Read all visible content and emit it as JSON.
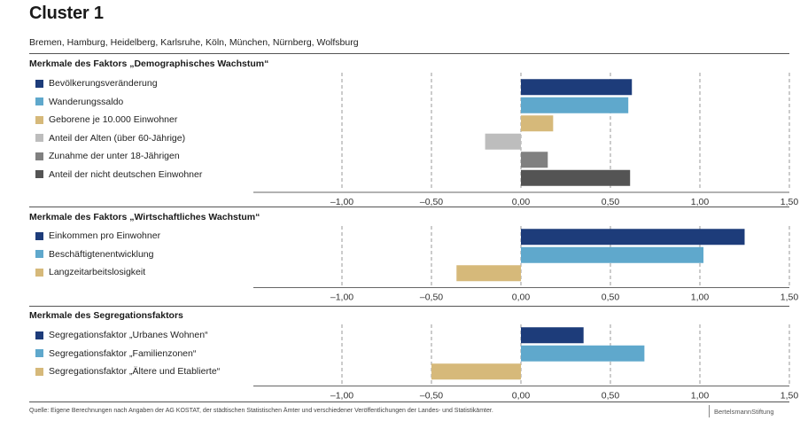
{
  "header": {
    "title": "Cluster 1",
    "subtitle": "Bremen, Hamburg, Heidelberg, Karlsruhe, Köln, München, Nürnberg, Wolfsburg"
  },
  "footer": {
    "source": "Quelle: Eigene Berechnungen nach Angaben der AG KOSTAT, der städtischen Statistischen Ämter und verschiedener Veröffentlichungen der Landes- und Statistikämter.",
    "logo": "BertelsmannStiftung"
  },
  "colors": {
    "dark_blue": "#1d3c7a",
    "light_blue": "#5fa8cc",
    "tan": "#d6b97a",
    "light_gray": "#bdbdbd",
    "mid_gray": "#808080",
    "dark_gray": "#545454"
  },
  "chart_data": [
    {
      "type": "bar",
      "orientation": "horizontal",
      "title": "Merkmale des Faktors „Demographisches Wachstum“",
      "xlim": [
        -1.0,
        1.5
      ],
      "ticks": [
        -1.0,
        -0.5,
        0.0,
        0.5,
        1.0,
        1.5
      ],
      "tick_labels": [
        "–1,00",
        "–0,50",
        "0,00",
        "0,50",
        "1,00",
        "1,50"
      ],
      "grid": "dashed vertical",
      "series": [
        {
          "name": "Bevölkerungsveränderung",
          "value": 0.62,
          "color": "#1d3c7a"
        },
        {
          "name": "Wanderungssaldo",
          "value": 0.6,
          "color": "#5fa8cc"
        },
        {
          "name": "Geborene je 10.000 Einwohner",
          "value": 0.18,
          "color": "#d6b97a"
        },
        {
          "name": "Anteil der Alten (über 60-Jährige)",
          "value": -0.2,
          "color": "#bdbdbd"
        },
        {
          "name": "Zunahme der unter 18-Jährigen",
          "value": 0.15,
          "color": "#808080"
        },
        {
          "name": "Anteil der nicht deutschen Einwohner",
          "value": 0.61,
          "color": "#545454"
        }
      ]
    },
    {
      "type": "bar",
      "orientation": "horizontal",
      "title": "Merkmale des Faktors „Wirtschaftliches Wachstum“",
      "xlim": [
        -1.0,
        1.5
      ],
      "ticks": [
        -1.0,
        -0.5,
        0.0,
        0.5,
        1.0,
        1.5
      ],
      "tick_labels": [
        "–1,00",
        "–0,50",
        "0,00",
        "0,50",
        "1,00",
        "1,50"
      ],
      "grid": "dashed vertical",
      "series": [
        {
          "name": "Einkommen pro Einwohner",
          "value": 1.25,
          "color": "#1d3c7a"
        },
        {
          "name": "Beschäftigtenentwicklung",
          "value": 1.02,
          "color": "#5fa8cc"
        },
        {
          "name": "Langzeitarbeitslosigkeit",
          "value": -0.36,
          "color": "#d6b97a"
        }
      ]
    },
    {
      "type": "bar",
      "orientation": "horizontal",
      "title": "Merkmale des Segregationsfaktors",
      "xlim": [
        -1.0,
        1.5
      ],
      "ticks": [
        -1.0,
        -0.5,
        0.0,
        0.5,
        1.0,
        1.5
      ],
      "tick_labels": [
        "–1,00",
        "–0,50",
        "0,00",
        "0,50",
        "1,00",
        "1,50"
      ],
      "grid": "dashed vertical",
      "series": [
        {
          "name": "Segregationsfaktor „Urbanes Wohnen“",
          "value": 0.35,
          "color": "#1d3c7a"
        },
        {
          "name": "Segregationsfaktor „Familienzonen“",
          "value": 0.69,
          "color": "#5fa8cc"
        },
        {
          "name": "Segregationsfaktor „Ältere und Etablierte“",
          "value": -0.5,
          "color": "#d6b97a"
        }
      ]
    }
  ]
}
